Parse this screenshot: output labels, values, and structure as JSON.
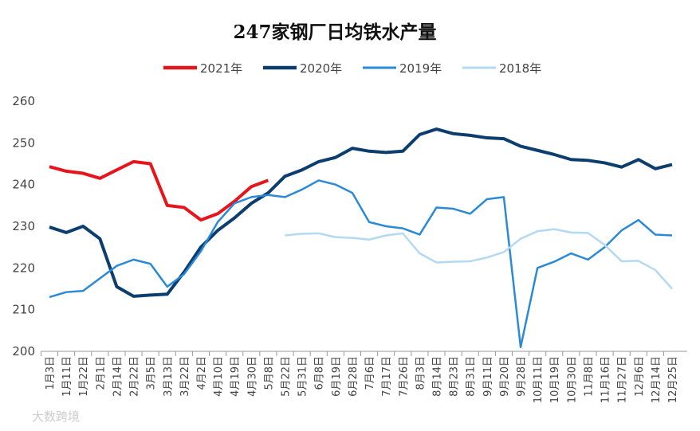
{
  "chart_data": {
    "type": "line",
    "title": "247家钢厂日均铁水产量",
    "watermark": "大数跨境",
    "categories": [
      "1月3日",
      "1月11日",
      "1月22日",
      "2月1日",
      "2月14日",
      "2月22日",
      "3月5日",
      "3月13日",
      "3月22日",
      "4月2日",
      "4月10日",
      "4月19日",
      "4月30日",
      "5月8日",
      "5月22日",
      "5月31日",
      "6月8日",
      "6月19日",
      "6月28日",
      "7月6日",
      "7月17日",
      "7月26日",
      "8月3日",
      "8月14日",
      "8月23日",
      "8月31日",
      "9月11日",
      "9月20日",
      "9月28日",
      "10月11日",
      "10月19日",
      "10月30日",
      "11月8日",
      "11月16日",
      "11月27日",
      "12月6日",
      "12月14日",
      "12月25日"
    ],
    "series": [
      {
        "name": "2021年",
        "color": "#e8141b",
        "width": 4,
        "values": [
          244.3,
          243.2,
          242.7,
          241.5,
          243.5,
          245.5,
          245,
          235,
          234.5,
          231.5,
          233,
          236,
          239.5,
          241,
          null,
          null,
          null,
          null,
          null,
          null,
          null,
          null,
          null,
          null,
          null,
          null,
          null,
          null,
          null,
          null,
          null,
          null,
          null,
          null,
          null,
          null,
          null,
          null
        ]
      },
      {
        "name": "2020年",
        "color": "#0b3d6e",
        "width": 4,
        "values": [
          229.8,
          228.5,
          230,
          227,
          215.5,
          213.2,
          213.5,
          213.7,
          219,
          225,
          229,
          232,
          235.5,
          238,
          242,
          243.5,
          245.5,
          246.5,
          248.7,
          248,
          247.7,
          248,
          252,
          253.3,
          252.2,
          251.8,
          251.2,
          251,
          249.2,
          248.2,
          247.2,
          246,
          245.8,
          245.2,
          244.2,
          246,
          243.8,
          244.8
        ]
      },
      {
        "name": "2019年",
        "color": "#2b8ad8",
        "width": 2.5,
        "values": [
          213,
          214.2,
          214.5,
          217.5,
          220.5,
          222,
          221,
          215.5,
          218.5,
          224,
          231,
          235.5,
          237,
          237.5,
          237,
          238.8,
          241,
          240,
          238,
          231,
          230,
          229.5,
          228,
          234.5,
          234.2,
          233,
          236.5,
          237,
          201,
          220,
          221.5,
          223.5,
          222,
          225,
          229,
          231.5,
          228,
          227.8
        ]
      },
      {
        "name": "2018年",
        "color": "#b4d9f2",
        "width": 2.5,
        "values": [
          null,
          null,
          null,
          null,
          null,
          null,
          null,
          null,
          null,
          null,
          null,
          null,
          null,
          null,
          227.8,
          228.2,
          228.3,
          227.4,
          227.2,
          226.8,
          227.8,
          228.3,
          223.5,
          221.3,
          221.5,
          221.6,
          222.5,
          223.8,
          227,
          228.8,
          229.3,
          228.5,
          228.4,
          225.5,
          221.6,
          221.7,
          219.5,
          215
        ]
      }
    ],
    "ylim": [
      200,
      260
    ],
    "yticks": [
      200,
      210,
      220,
      230,
      240,
      250,
      260
    ],
    "grid": false,
    "legend": "top"
  }
}
